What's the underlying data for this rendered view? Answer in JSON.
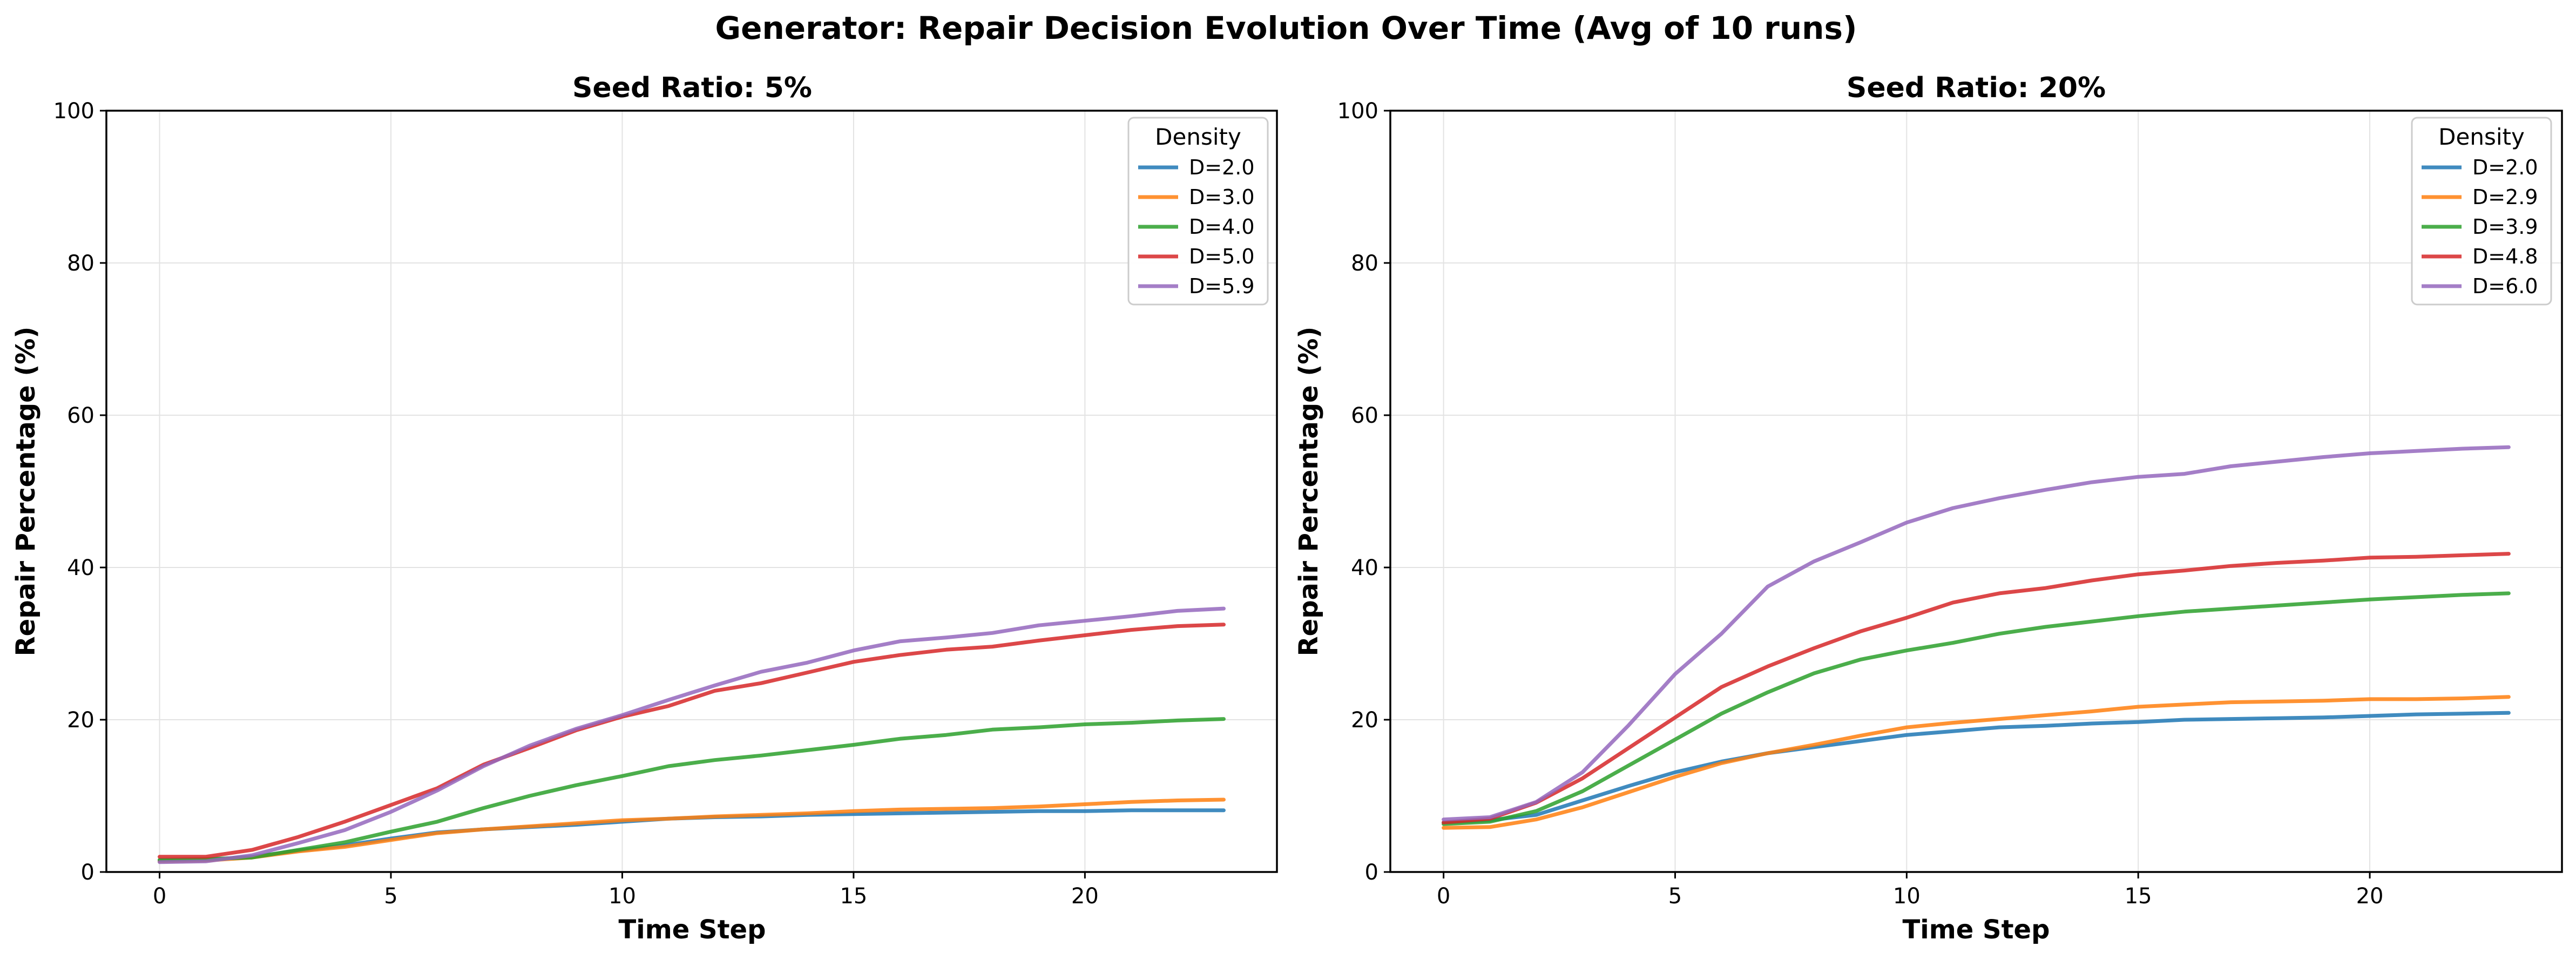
{
  "figure": {
    "title": "Generator: Repair Decision Evolution Over Time (Avg of 10 runs)"
  },
  "chart_data": [
    {
      "type": "line",
      "title": "Seed Ratio: 5%",
      "xlabel": "Time Step",
      "ylabel": "Repair Percentage (%)",
      "xlim": [
        -1.15,
        24.15
      ],
      "ylim": [
        0,
        100
      ],
      "xticks": [
        "0",
        "5",
        "10",
        "15",
        "20"
      ],
      "yticks": [
        "0",
        "20",
        "40",
        "60",
        "80",
        "100"
      ],
      "grid": true,
      "legend": {
        "title": "Density",
        "position": "top-right"
      },
      "x": [
        0,
        1,
        2,
        3,
        4,
        5,
        6,
        7,
        8,
        9,
        10,
        11,
        12,
        13,
        14,
        15,
        16,
        17,
        18,
        19,
        20,
        21,
        22,
        23
      ],
      "series": [
        {
          "name": "D=2.0",
          "color": "#1f77b4",
          "values": [
            1.5,
            1.6,
            2.0,
            2.8,
            3.5,
            4.4,
            5.2,
            5.6,
            5.9,
            6.2,
            6.6,
            7.0,
            7.2,
            7.3,
            7.5,
            7.6,
            7.7,
            7.8,
            7.9,
            8.0,
            8.0,
            8.1,
            8.1,
            8.1
          ]
        },
        {
          "name": "D=3.0",
          "color": "#ff7f0e",
          "values": [
            1.4,
            1.5,
            1.9,
            2.7,
            3.3,
            4.2,
            5.1,
            5.6,
            6.0,
            6.4,
            6.8,
            7.0,
            7.3,
            7.5,
            7.7,
            8.0,
            8.2,
            8.3,
            8.4,
            8.6,
            8.9,
            9.2,
            9.4,
            9.5
          ]
        },
        {
          "name": "D=4.0",
          "color": "#2ca02c",
          "values": [
            1.6,
            1.7,
            1.9,
            2.9,
            3.9,
            5.3,
            6.6,
            8.4,
            10.0,
            11.4,
            12.6,
            13.9,
            14.7,
            15.3,
            16.0,
            16.7,
            17.5,
            18.0,
            18.7,
            19.0,
            19.4,
            19.6,
            19.9,
            20.1
          ]
        },
        {
          "name": "D=5.0",
          "color": "#d62728",
          "values": [
            2.0,
            2.0,
            2.9,
            4.6,
            6.6,
            8.8,
            11.0,
            14.1,
            16.3,
            18.6,
            20.4,
            21.8,
            23.8,
            24.8,
            26.2,
            27.6,
            28.5,
            29.2,
            29.6,
            30.4,
            31.1,
            31.8,
            32.3,
            32.5
          ]
        },
        {
          "name": "D=5.9",
          "color": "#9467bd",
          "values": [
            1.3,
            1.4,
            2.2,
            3.8,
            5.5,
            7.9,
            10.7,
            13.9,
            16.6,
            18.8,
            20.6,
            22.6,
            24.5,
            26.3,
            27.5,
            29.1,
            30.3,
            30.8,
            31.4,
            32.4,
            33.0,
            33.6,
            34.3,
            34.6
          ]
        }
      ]
    },
    {
      "type": "line",
      "title": "Seed Ratio: 20%",
      "xlabel": "Time Step",
      "ylabel": "Repair Percentage (%)",
      "xlim": [
        -1.15,
        24.15
      ],
      "ylim": [
        0,
        100
      ],
      "xticks": [
        "0",
        "5",
        "10",
        "15",
        "20"
      ],
      "yticks": [
        "0",
        "20",
        "40",
        "60",
        "80",
        "100"
      ],
      "grid": true,
      "legend": {
        "title": "Density",
        "position": "top-right"
      },
      "x": [
        0,
        1,
        2,
        3,
        4,
        5,
        6,
        7,
        8,
        9,
        10,
        11,
        12,
        13,
        14,
        15,
        16,
        17,
        18,
        19,
        20,
        21,
        22,
        23
      ],
      "series": [
        {
          "name": "D=2.0",
          "color": "#1f77b4",
          "values": [
            6.5,
            6.8,
            7.5,
            9.4,
            11.3,
            13.1,
            14.5,
            15.6,
            16.4,
            17.2,
            18.0,
            18.5,
            19.0,
            19.2,
            19.5,
            19.7,
            20.0,
            20.1,
            20.2,
            20.3,
            20.5,
            20.7,
            20.8,
            20.9
          ]
        },
        {
          "name": "D=2.9",
          "color": "#ff7f0e",
          "values": [
            5.8,
            5.9,
            6.9,
            8.5,
            10.5,
            12.5,
            14.3,
            15.6,
            16.7,
            17.9,
            19.0,
            19.6,
            20.1,
            20.6,
            21.1,
            21.7,
            22.0,
            22.3,
            22.4,
            22.5,
            22.7,
            22.7,
            22.8,
            23.0
          ]
        },
        {
          "name": "D=3.9",
          "color": "#2ca02c",
          "values": [
            6.3,
            6.6,
            8.0,
            10.6,
            14.0,
            17.4,
            20.8,
            23.6,
            26.1,
            27.9,
            29.1,
            30.1,
            31.3,
            32.2,
            32.9,
            33.6,
            34.2,
            34.6,
            35.0,
            35.4,
            35.8,
            36.1,
            36.4,
            36.6
          ]
        },
        {
          "name": "D=4.8",
          "color": "#d62728",
          "values": [
            6.5,
            7.0,
            9.1,
            12.3,
            16.3,
            20.3,
            24.3,
            27.0,
            29.4,
            31.6,
            33.4,
            35.4,
            36.6,
            37.3,
            38.3,
            39.1,
            39.6,
            40.2,
            40.6,
            40.9,
            41.3,
            41.4,
            41.6,
            41.8
          ]
        },
        {
          "name": "D=6.0",
          "color": "#9467bd",
          "values": [
            6.9,
            7.2,
            9.2,
            13.1,
            19.3,
            26.0,
            31.3,
            37.5,
            40.8,
            43.3,
            45.9,
            47.8,
            49.1,
            50.2,
            51.2,
            51.9,
            52.3,
            53.3,
            53.9,
            54.5,
            55.0,
            55.3,
            55.6,
            55.8
          ]
        }
      ]
    }
  ]
}
